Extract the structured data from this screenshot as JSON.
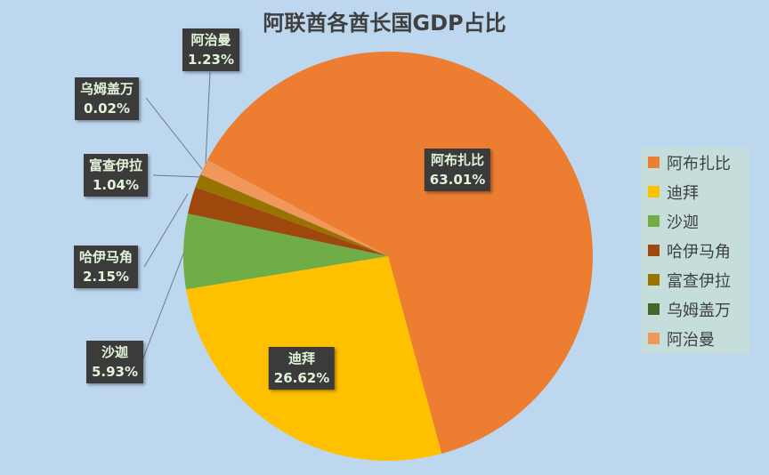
{
  "chart_data": {
    "type": "pie",
    "title": "阿联酋各酋长国GDP占比",
    "categories": [
      "阿布扎比",
      "迪拜",
      "沙迦",
      "哈伊马角",
      "富查伊拉",
      "乌姆盖万",
      "阿治曼"
    ],
    "values": [
      63.01,
      26.62,
      5.93,
      2.15,
      1.04,
      0.02,
      1.23
    ],
    "labels": [
      "63.01%",
      "26.62%",
      "5.93%",
      "2.15%",
      "1.04%",
      "0.02%",
      "1.23%"
    ],
    "colors": [
      "#ED7D31",
      "#FFC000",
      "#70AD47",
      "#9E480E",
      "#997300",
      "#43682B",
      "#F1975A"
    ],
    "legend": "right"
  }
}
